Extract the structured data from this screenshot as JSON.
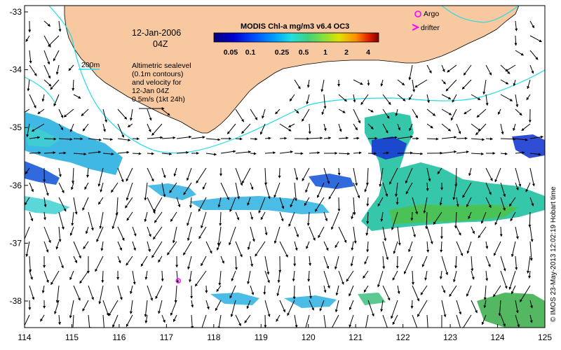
{
  "map": {
    "date_line1": "12-Jan-2006",
    "date_line2": "04Z",
    "contour_label": "200m",
    "annotation_lines": [
      "Altimetric sealevel",
      "(0.1m contours)",
      "and velocity for",
      "12-Jan 04Z",
      "0.5m/s (1kt 24h)"
    ],
    "credit": "© IMOS 23-May-2013 12:02:19 Hobart time",
    "x_ticks": [
      "114",
      "115",
      "116",
      "117",
      "118",
      "119",
      "120",
      "121",
      "122",
      "123",
      "124",
      "125"
    ],
    "y_ticks": [
      "-33",
      "-34",
      "-35",
      "-36",
      "-37",
      "-38"
    ],
    "colors": {
      "land": "#f8c8a0",
      "contour": "#22dde6",
      "arrows": "#000000",
      "argo": "#ff00ff",
      "drifter": "#ff00ff"
    }
  },
  "colorbar": {
    "title": "MODIS Chl-a mg/m3 v6.4 OC3",
    "ticks": [
      "0.05",
      "0.1",
      "0.25",
      "0.5",
      "1",
      "2",
      "4"
    ],
    "colors": [
      "#00007a",
      "#0000d0",
      "#0050ff",
      "#00a0ff",
      "#20e0e0",
      "#40d080",
      "#80e040",
      "#e0e000",
      "#ff9000",
      "#e02000",
      "#800000"
    ]
  },
  "legend": {
    "argo_label": "Argo",
    "drifter_label": "drifter"
  },
  "argo_position": {
    "lon": 117.25,
    "lat": -37.65
  }
}
